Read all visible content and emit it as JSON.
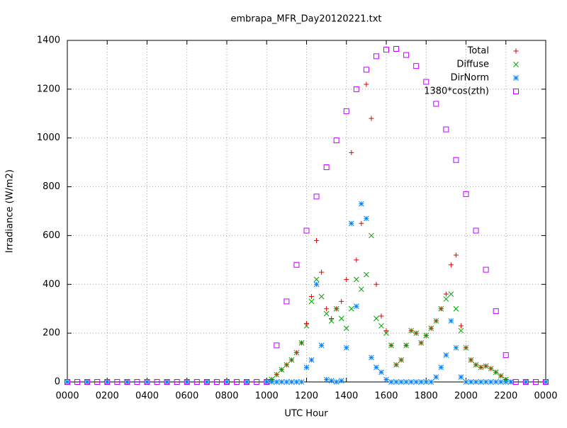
{
  "chart_data": {
    "type": "scatter",
    "title": "embrapa_MFR_Day20120221.txt",
    "x_label": "UTC Hour",
    "y_label": "Irradiance (W/m2)",
    "xlim": [
      0,
      24
    ],
    "ylim": [
      0,
      1400
    ],
    "xticks": [
      {
        "value": 0,
        "label": "0000"
      },
      {
        "value": 2,
        "label": "0200"
      },
      {
        "value": 4,
        "label": "0400"
      },
      {
        "value": 6,
        "label": "0600"
      },
      {
        "value": 8,
        "label": "0800"
      },
      {
        "value": 10,
        "label": "1000"
      },
      {
        "value": 12,
        "label": "1200"
      },
      {
        "value": 14,
        "label": "1400"
      },
      {
        "value": 16,
        "label": "1600"
      },
      {
        "value": 18,
        "label": "1800"
      },
      {
        "value": 20,
        "label": "2000"
      },
      {
        "value": 22,
        "label": "2200"
      },
      {
        "value": 24,
        "label": "0000"
      }
    ],
    "yticks": [
      0,
      200,
      400,
      600,
      800,
      1000,
      1200,
      1400
    ],
    "grid": true,
    "legend_position": "top-right",
    "series": [
      {
        "name": "Total",
        "color": "#e00000",
        "marker": "plus",
        "x": [
          0,
          1,
          2,
          3,
          4,
          5,
          6,
          7,
          8,
          9,
          10,
          10.25,
          10.5,
          10.75,
          11,
          11.25,
          11.5,
          11.75,
          12,
          12.25,
          12.5,
          12.75,
          13,
          13.25,
          13.5,
          13.75,
          14,
          14.25,
          14.5,
          14.75,
          15,
          15.25,
          15.5,
          15.75,
          16,
          16.25,
          16.5,
          16.75,
          17,
          17.25,
          17.5,
          17.75,
          18,
          18.25,
          18.5,
          18.75,
          19,
          19.25,
          19.5,
          19.75,
          20,
          20.25,
          20.5,
          20.75,
          21,
          21.25,
          21.5,
          21.75,
          22,
          22.25,
          23,
          24
        ],
        "values": [
          0,
          0,
          0,
          0,
          0,
          0,
          0,
          0,
          0,
          0,
          0,
          10,
          30,
          50,
          70,
          90,
          120,
          160,
          240,
          350,
          580,
          450,
          300,
          260,
          300,
          330,
          420,
          940,
          500,
          650,
          1220,
          1080,
          400,
          270,
          210,
          150,
          70,
          90,
          150,
          210,
          200,
          160,
          190,
          220,
          250,
          300,
          360,
          480,
          520,
          230,
          140,
          90,
          70,
          60,
          65,
          55,
          40,
          25,
          10,
          0,
          0,
          0
        ]
      },
      {
        "name": "Diffuse",
        "color": "#00a000",
        "marker": "cross",
        "x": [
          0,
          1,
          2,
          3,
          4,
          5,
          6,
          7,
          8,
          9,
          10,
          10.25,
          10.5,
          10.75,
          11,
          11.25,
          11.5,
          11.75,
          12,
          12.25,
          12.5,
          12.75,
          13,
          13.25,
          13.5,
          13.75,
          14,
          14.25,
          14.5,
          14.75,
          15,
          15.25,
          15.5,
          15.75,
          16,
          16.25,
          16.5,
          16.75,
          17,
          17.25,
          17.5,
          17.75,
          18,
          18.25,
          18.5,
          18.75,
          19,
          19.25,
          19.5,
          19.75,
          20,
          20.25,
          20.5,
          20.75,
          21,
          21.25,
          21.5,
          21.75,
          22,
          22.25,
          23,
          24
        ],
        "values": [
          0,
          0,
          0,
          0,
          0,
          0,
          0,
          0,
          0,
          0,
          0,
          10,
          30,
          50,
          70,
          90,
          120,
          160,
          230,
          330,
          420,
          350,
          280,
          250,
          300,
          260,
          220,
          300,
          420,
          380,
          440,
          600,
          260,
          230,
          200,
          150,
          70,
          90,
          150,
          210,
          200,
          160,
          190,
          220,
          250,
          300,
          340,
          360,
          300,
          210,
          140,
          90,
          70,
          60,
          65,
          55,
          40,
          25,
          10,
          0,
          0,
          0
        ]
      },
      {
        "name": "DirNorm",
        "color": "#0080ff",
        "marker": "star",
        "x": [
          0,
          1,
          2,
          3,
          4,
          5,
          6,
          7,
          8,
          9,
          10,
          10.25,
          10.5,
          10.75,
          11,
          11.25,
          11.5,
          11.75,
          12,
          12.25,
          12.5,
          12.75,
          13,
          13.25,
          13.5,
          13.75,
          14,
          14.25,
          14.5,
          14.75,
          15,
          15.25,
          15.5,
          15.75,
          16,
          16.25,
          16.5,
          16.75,
          17,
          17.25,
          17.5,
          17.75,
          18,
          18.25,
          18.5,
          18.75,
          19,
          19.25,
          19.5,
          19.75,
          20,
          20.25,
          20.5,
          20.75,
          21,
          21.25,
          21.5,
          21.75,
          22,
          22.25,
          23,
          24
        ],
        "values": [
          0,
          0,
          0,
          0,
          0,
          0,
          0,
          0,
          0,
          0,
          0,
          0,
          0,
          0,
          0,
          0,
          0,
          0,
          60,
          90,
          400,
          150,
          10,
          5,
          0,
          5,
          140,
          650,
          310,
          730,
          670,
          100,
          60,
          40,
          10,
          0,
          0,
          0,
          0,
          0,
          0,
          0,
          0,
          0,
          20,
          60,
          110,
          250,
          140,
          20,
          0,
          0,
          0,
          0,
          0,
          0,
          0,
          0,
          0,
          0,
          0,
          0
        ]
      },
      {
        "name": "1380*cos(zth)",
        "color": "#c000ff",
        "marker": "square",
        "x": [
          0,
          0.5,
          1,
          1.5,
          2,
          2.5,
          3,
          3.5,
          4,
          4.5,
          5,
          5.5,
          6,
          6.5,
          7,
          7.5,
          8,
          8.5,
          9,
          9.5,
          10,
          10.5,
          11,
          11.5,
          12,
          12.5,
          13,
          13.5,
          14,
          14.5,
          15,
          15.5,
          16,
          16.5,
          17,
          17.5,
          18,
          18.5,
          19,
          19.5,
          20,
          20.5,
          21,
          21.5,
          22,
          22.5,
          23,
          23.5,
          24
        ],
        "values": [
          0,
          0,
          0,
          0,
          0,
          0,
          0,
          0,
          0,
          0,
          0,
          0,
          0,
          0,
          0,
          0,
          0,
          0,
          0,
          0,
          0,
          150,
          330,
          480,
          620,
          760,
          880,
          990,
          1110,
          1200,
          1280,
          1335,
          1362,
          1365,
          1340,
          1295,
          1230,
          1140,
          1035,
          910,
          770,
          620,
          460,
          290,
          110,
          0,
          0,
          0,
          0
        ]
      }
    ]
  }
}
